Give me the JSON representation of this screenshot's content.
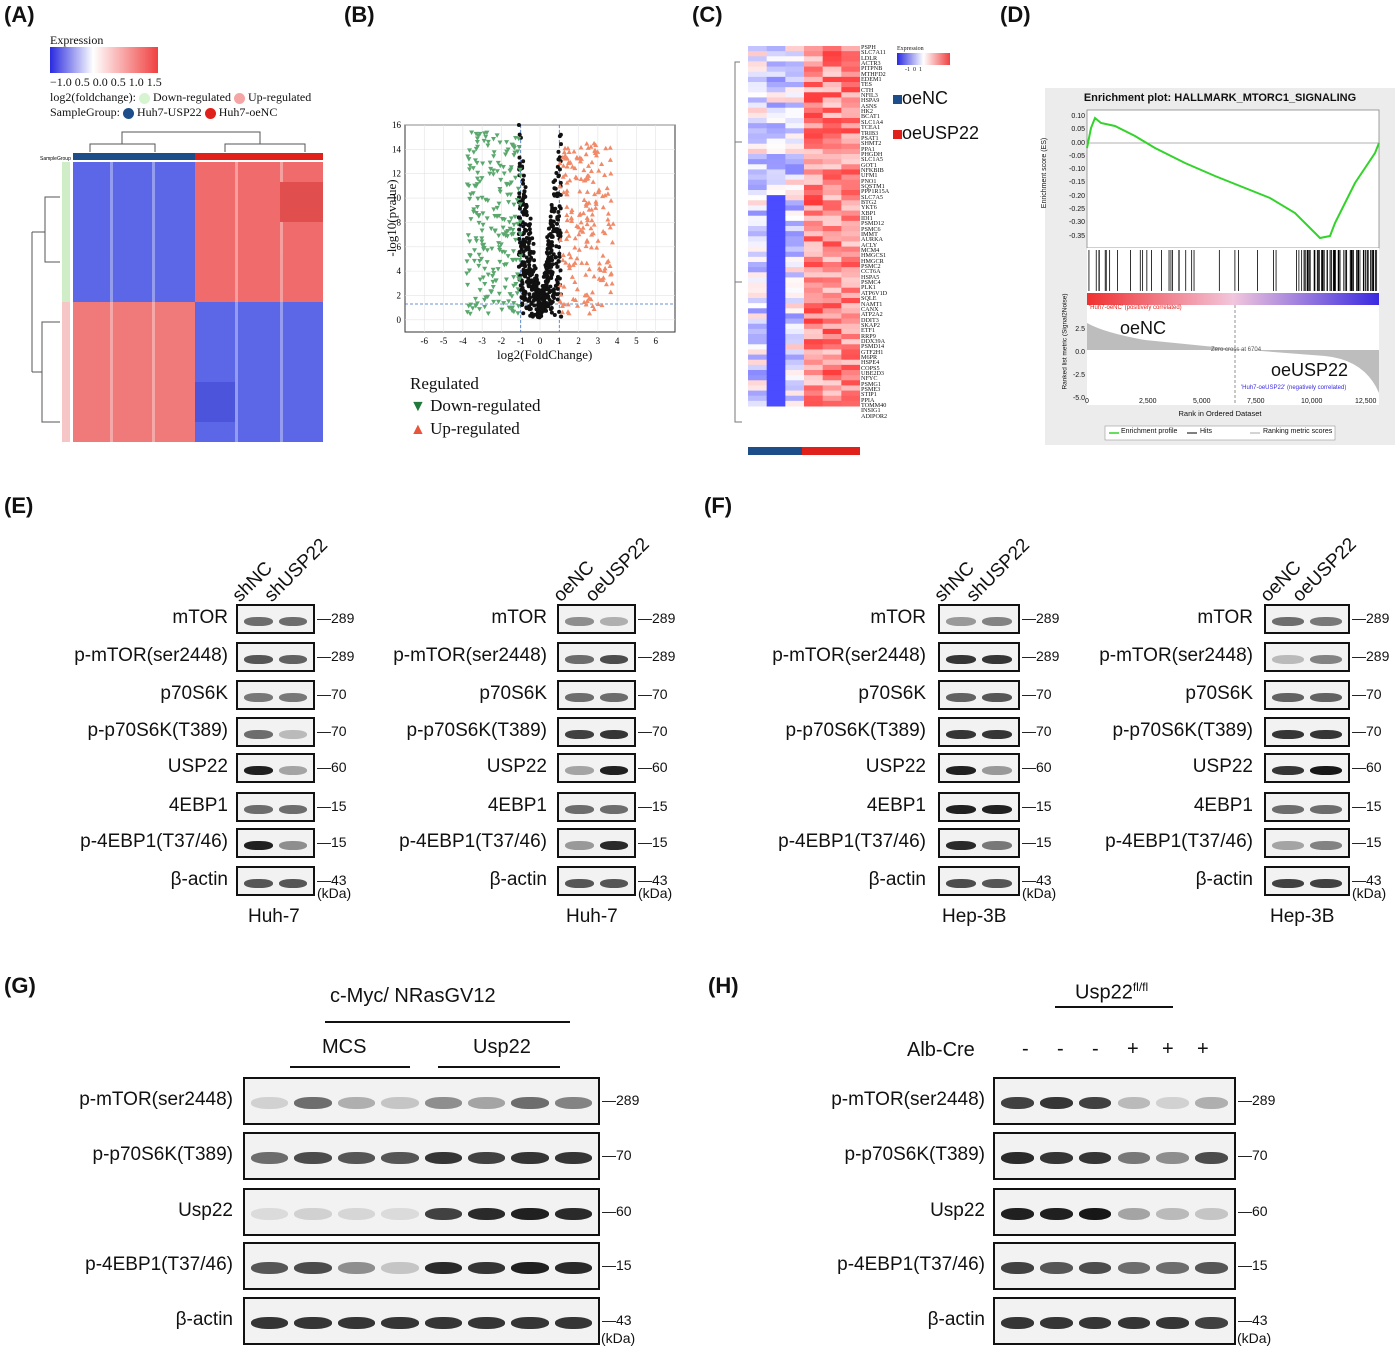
{
  "panels": {
    "A": "(A)",
    "B": "(B)",
    "C": "(C)",
    "D": "(D)",
    "E": "(E)",
    "F": "(F)",
    "G": "(G)",
    "H": "(H)"
  },
  "panelA": {
    "legend_title": "Expression",
    "scale_ticks": "−1.0 0.5 0.0 0.5 1.0 1.5",
    "fc_label": "log2(foldchange):",
    "down": "Down-regulated",
    "up": "Up-regulated",
    "sg_label": "SampleGroup:",
    "group1": "Huh7-USP22",
    "group2": "Huh7-oeNC",
    "sg_row": "SampleGroup"
  },
  "panelB": {
    "ylabel": "-log10(pvalue)",
    "xlabel": "log2(FoldChange)",
    "xticks": [
      "-6",
      "-5",
      "-4",
      "-3",
      "-2",
      "-1",
      "0",
      "1",
      "2",
      "3",
      "4",
      "5",
      "6"
    ],
    "yticks": [
      "0",
      "2",
      "4",
      "6",
      "8",
      "10",
      "12",
      "14",
      "16"
    ],
    "legend_title": "Regulated",
    "down": "Down-regulated",
    "up": "Up-regulated"
  },
  "panelC": {
    "legend_title": "Expression",
    "scale": "-1  0  1",
    "oeNC": "oeNC",
    "oeUSP22": "oeUSP22",
    "genes": [
      "PSPH",
      "SLC7A11",
      "LDLR",
      "ACTR3",
      "PITPNB",
      "MTHFD2",
      "EDEM1",
      "TES",
      "CTH",
      "NFIL3",
      "HSPA9",
      "ASNS",
      "HK2",
      "BCAT1",
      "SLC1A4",
      "TCEA1",
      "TRIB3",
      "PSAT1",
      "SHMT2",
      "PPA1",
      "PHGDH",
      "SLC1A5",
      "GOT1",
      "NFKBIB",
      "UFM1",
      "PNO1",
      "SQSTM1",
      "PPP1R15A",
      "SLC7A5",
      "BTG2",
      "YKT6",
      "XBP1",
      "IDI1",
      "PSMD12",
      "PSMC6",
      "IMMT",
      "AURKA",
      "ACLY",
      "MCM4",
      "HMGCS1",
      "HMGCR",
      "PSMC2",
      "CCT6A",
      "HSPA5",
      "PSMC4",
      "PLK1",
      "ATP6V1D",
      "SQLE",
      "NAMT1",
      "CANX",
      "ATP2A2",
      "DDIT3",
      "SKAP2",
      "ETF1",
      "RRP9",
      "DDX39A",
      "PSMD14",
      "GTF2H1",
      "M6PR",
      "HSPE4",
      "COPS5",
      "UBE2D3",
      "NFYC",
      "PSMG1",
      "PSME3",
      "STIP1",
      "PPIA",
      "TOMM40",
      "INSIG1",
      "ADIPOR2"
    ]
  },
  "panelD": {
    "title": "Enrichment plot: HALLMARK_MTORC1_SIGNALING",
    "es_label": "Enrichment score (ES)",
    "es_ticks": [
      "0.10",
      "0.05",
      "0.00",
      "-0.05",
      "-0.10",
      "-0.15",
      "-0.20",
      "-0.25",
      "-0.30",
      "-0.35"
    ],
    "rank_label": "Ranked list metric (Signal2Noise)",
    "rank_ticks": [
      "2.5",
      "0.0",
      "-2.5",
      "-5.0"
    ],
    "pos_corr": "'Huh7-oeNC' (positively correlated)",
    "neg_corr": "'Huh7-oeUSP22' (negatively correlated)",
    "zero_cross": "Zero cross at 6704",
    "oeNC": "oeNC",
    "oeUSP22": "oeUSP22",
    "xticks": [
      "0",
      "2,500",
      "5,000",
      "7,500",
      "10,000",
      "12,500"
    ],
    "xlabel": "Rank in Ordered Dataset",
    "legend": [
      "Enrichment profile",
      "Hits",
      "Ranking metric scores"
    ]
  },
  "blotsEF": {
    "rows": [
      "mTOR",
      "p-mTOR(ser2448)",
      "p70S6K",
      "p-p70S6K(T389)",
      "USP22",
      "4EBP1",
      "p-4EBP1(T37/46)",
      "β-actin"
    ],
    "kda": [
      "289",
      "289",
      "70",
      "70",
      "60",
      "15",
      "15",
      "43"
    ],
    "unit": "(kDa)",
    "E_left": {
      "lanes": [
        "shNC",
        "shUSP22"
      ],
      "cell": "Huh-7"
    },
    "E_right": {
      "lanes": [
        "oeNC",
        "oeUSP22"
      ],
      "cell": "Huh-7"
    },
    "F_left": {
      "lanes": [
        "shNC",
        "shUSP22"
      ],
      "cell": "Hep-3B"
    },
    "F_right": {
      "lanes": [
        "oeNC",
        "oeUSP22"
      ],
      "cell": "Hep-3B"
    }
  },
  "panelG": {
    "header": "c-Myc/ NRasGV12",
    "groups": [
      "MCS",
      "Usp22"
    ],
    "rows": [
      "p-mTOR(ser2448)",
      "p-p70S6K(T389)",
      "Usp22",
      "p-4EBP1(T37/46)",
      "β-actin"
    ],
    "kda": [
      "289",
      "70",
      "60",
      "15",
      "43"
    ],
    "unit": "(kDa)"
  },
  "panelH": {
    "header": "Usp22",
    "header_sup": "fl/fl",
    "albcre": "Alb-Cre",
    "signs": [
      "-",
      "-",
      "-",
      "+",
      "+",
      "+"
    ],
    "rows": [
      "p-mTOR(ser2448)",
      "p-p70S6K(T389)",
      "Usp22",
      "p-4EBP1(T37/46)",
      "β-actin"
    ],
    "kda": [
      "289",
      "70",
      "60",
      "15",
      "43"
    ],
    "unit": "(kDa)"
  },
  "colors": {
    "up": "#e8553a",
    "down": "#3e9a5a",
    "nc_blue": "#1d4e89",
    "usp_red": "#e0201b",
    "gsea_green": "#32d32a"
  }
}
